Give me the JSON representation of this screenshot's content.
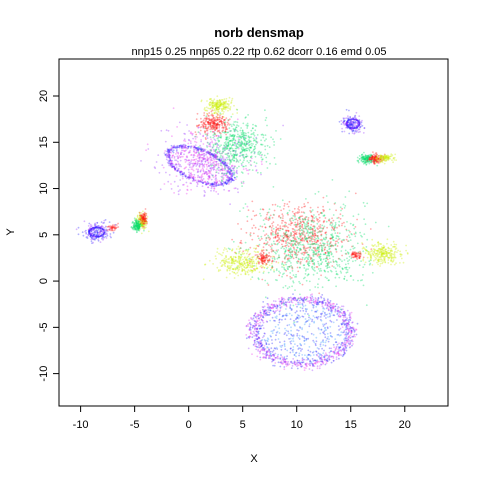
{
  "chart_data": {
    "type": "scatter",
    "title": "norb densmap",
    "subtitle": "nnp15 0.25 nnp65 0.22 rtp 0.62 dcorr 0.16 emd 0.05",
    "xlabel": "X",
    "ylabel": "Y",
    "xlim": [
      -12,
      24
    ],
    "ylim": [
      -13.5,
      24
    ],
    "xticks": [
      -10,
      -5,
      0,
      5,
      10,
      15,
      20
    ],
    "yticks": [
      -10,
      -5,
      0,
      5,
      10,
      15,
      20
    ],
    "grid": false,
    "legend": "none",
    "colors": {
      "blue": "#2222ff",
      "violet": "#9933ff",
      "magenta": "#ee33ee",
      "red": "#ff1a1a",
      "green": "#00dd66",
      "yellow": "#ccee00",
      "cyan": "#3399ff"
    },
    "clusters": [
      {
        "shape": "ring",
        "cx": 10.5,
        "cy": -5.5,
        "rx": 4.5,
        "ry": 3.5,
        "n": 900,
        "spread": 0.3,
        "colors": [
          "blue",
          "violet",
          "magenta"
        ],
        "fill": {
          "n": 400,
          "colors": [
            "cyan",
            "blue"
          ]
        }
      },
      {
        "shape": "ring",
        "cx": 1.0,
        "cy": 12.5,
        "rx": 3.2,
        "ry": 1.6,
        "angle": -28,
        "n": 450,
        "spread": 0.2,
        "colors": [
          "blue",
          "violet"
        ],
        "fill": {
          "n": 150,
          "colors": [
            "magenta",
            "violet"
          ]
        }
      },
      {
        "shape": "blob",
        "cx": 1.5,
        "cy": 13.0,
        "rx": 4.0,
        "ry": 3.5,
        "n": 500,
        "colors": [
          "magenta",
          "violet"
        ]
      },
      {
        "shape": "blob",
        "cx": 4.5,
        "cy": 14.5,
        "rx": 2.8,
        "ry": 2.8,
        "n": 500,
        "colors": [
          "green"
        ]
      },
      {
        "shape": "blob",
        "cx": 2.3,
        "cy": 17.0,
        "rx": 1.3,
        "ry": 1.0,
        "n": 250,
        "colors": [
          "red"
        ]
      },
      {
        "shape": "blob",
        "cx": 2.8,
        "cy": 19.0,
        "rx": 1.3,
        "ry": 0.8,
        "n": 200,
        "colors": [
          "yellow"
        ]
      },
      {
        "shape": "blob",
        "cx": 10.0,
        "cy": 5.0,
        "rx": 4.5,
        "ry": 3.5,
        "n": 600,
        "colors": [
          "red"
        ]
      },
      {
        "shape": "blob",
        "cx": 11.5,
        "cy": 3.5,
        "rx": 5.0,
        "ry": 4.5,
        "n": 700,
        "colors": [
          "green"
        ]
      },
      {
        "shape": "blob",
        "cx": 5.0,
        "cy": 2.0,
        "rx": 2.5,
        "ry": 1.3,
        "n": 300,
        "colors": [
          "yellow"
        ]
      },
      {
        "shape": "blob",
        "cx": 18.0,
        "cy": 3.0,
        "rx": 1.8,
        "ry": 1.1,
        "n": 250,
        "colors": [
          "yellow"
        ]
      },
      {
        "shape": "blob",
        "cx": 7.0,
        "cy": 2.5,
        "rx": 0.6,
        "ry": 0.6,
        "n": 80,
        "colors": [
          "red"
        ]
      },
      {
        "shape": "blob",
        "cx": 15.5,
        "cy": 2.8,
        "rx": 0.6,
        "ry": 0.4,
        "n": 60,
        "colors": [
          "red"
        ]
      },
      {
        "shape": "ring",
        "cx": 15.2,
        "cy": 17.0,
        "rx": 0.6,
        "ry": 0.5,
        "n": 120,
        "spread": 0.12,
        "colors": [
          "blue",
          "violet"
        ]
      },
      {
        "shape": "blob",
        "cx": 15.2,
        "cy": 17.0,
        "rx": 1.0,
        "ry": 0.9,
        "n": 180,
        "colors": [
          "blue",
          "violet"
        ]
      },
      {
        "shape": "blob",
        "cx": 16.5,
        "cy": 13.2,
        "rx": 0.7,
        "ry": 0.5,
        "n": 140,
        "colors": [
          "green"
        ]
      },
      {
        "shape": "blob",
        "cx": 17.3,
        "cy": 13.2,
        "rx": 0.6,
        "ry": 0.5,
        "n": 140,
        "colors": [
          "red"
        ]
      },
      {
        "shape": "blob",
        "cx": 18.2,
        "cy": 13.3,
        "rx": 0.9,
        "ry": 0.4,
        "n": 100,
        "colors": [
          "yellow"
        ]
      },
      {
        "shape": "ring",
        "cx": -8.5,
        "cy": 5.3,
        "rx": 0.7,
        "ry": 0.5,
        "n": 120,
        "spread": 0.12,
        "colors": [
          "blue",
          "violet"
        ]
      },
      {
        "shape": "blob",
        "cx": -8.5,
        "cy": 5.3,
        "rx": 1.2,
        "ry": 1.0,
        "n": 200,
        "colors": [
          "blue",
          "violet"
        ]
      },
      {
        "shape": "blob",
        "cx": -7.0,
        "cy": 5.8,
        "rx": 0.4,
        "ry": 0.3,
        "n": 40,
        "colors": [
          "red"
        ]
      },
      {
        "shape": "blob",
        "cx": -4.3,
        "cy": 6.5,
        "rx": 0.5,
        "ry": 0.9,
        "n": 150,
        "colors": [
          "yellow"
        ]
      },
      {
        "shape": "blob",
        "cx": -4.8,
        "cy": 6.0,
        "rx": 0.4,
        "ry": 0.7,
        "n": 130,
        "colors": [
          "green"
        ]
      },
      {
        "shape": "blob",
        "cx": -4.2,
        "cy": 6.8,
        "rx": 0.3,
        "ry": 0.7,
        "n": 80,
        "colors": [
          "red"
        ]
      }
    ]
  }
}
